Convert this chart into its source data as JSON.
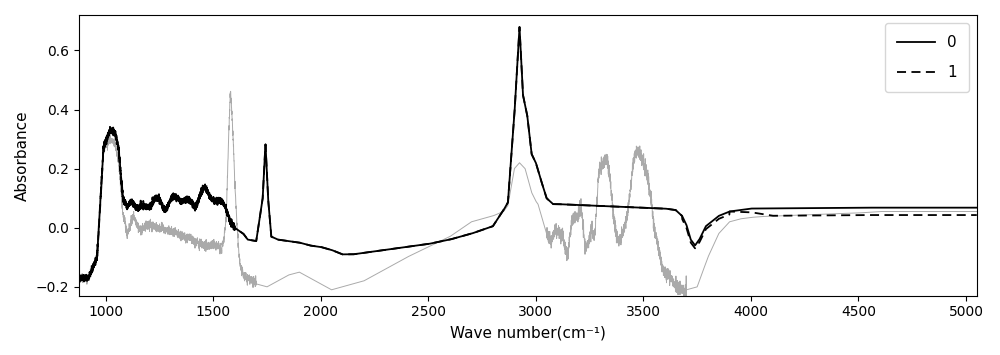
{
  "xlabel": "Wave number(cm⁻¹)",
  "ylabel": "Absorbance",
  "xlim": [
    875,
    5050
  ],
  "ylim": [
    -0.23,
    0.72
  ],
  "legend_labels": [
    "0",
    "1"
  ],
  "line0_color": "#000000",
  "line1_color": "#000000",
  "line_gray_color": "#aaaaaa",
  "line0_style": "solid",
  "line1_style": "dashed",
  "xticks": [
    1000,
    1500,
    2000,
    2500,
    3000,
    3500,
    4000,
    4500,
    5000
  ],
  "yticks": [
    -0.2,
    0.0,
    0.2,
    0.4,
    0.6
  ],
  "figsize": [
    10.0,
    3.55
  ],
  "dpi": 100
}
